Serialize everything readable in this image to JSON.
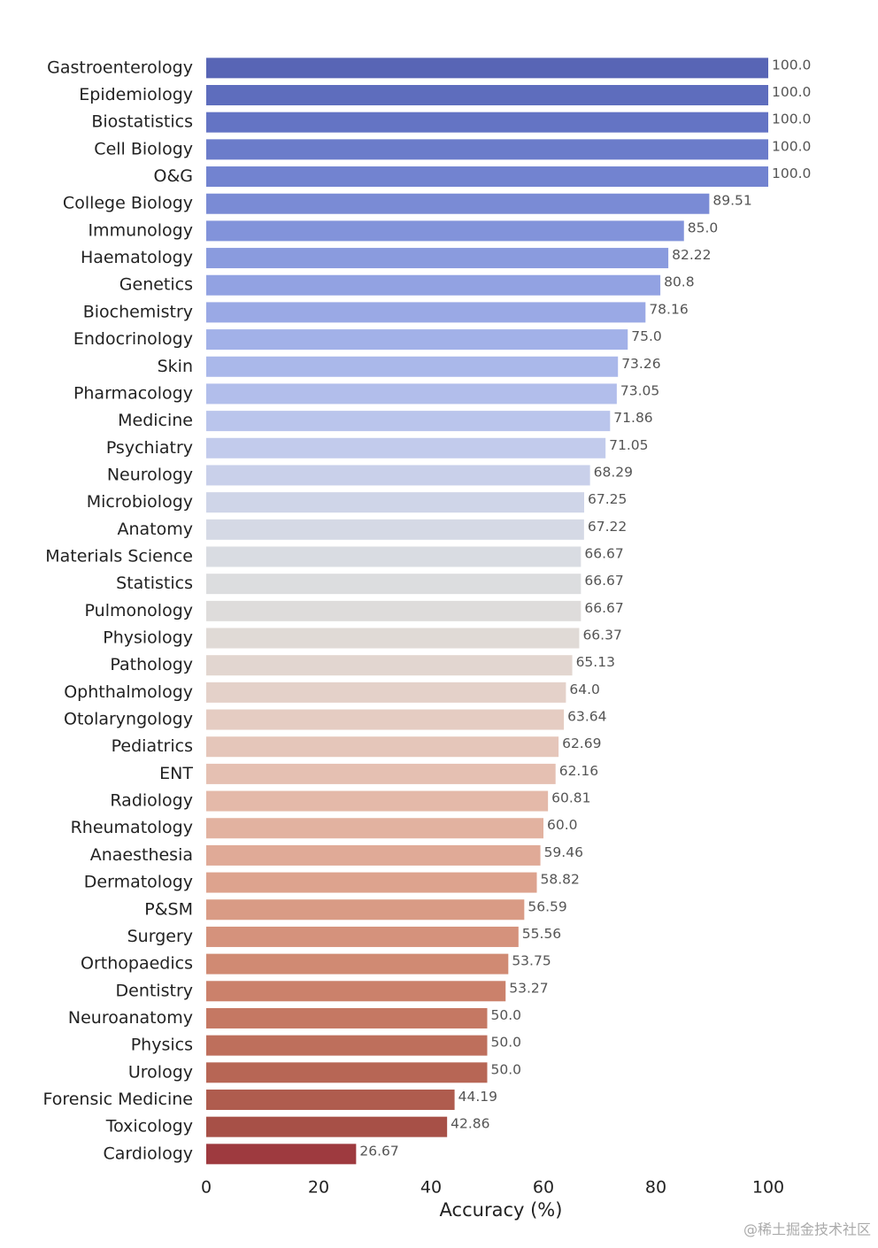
{
  "chart_data": {
    "type": "barh",
    "x_label": "Accuracy (%)",
    "categories": [
      "Gastroenterology",
      "Epidemiology",
      "Biostatistics",
      "Cell Biology",
      "O&G",
      "College Biology",
      "Immunology",
      "Haematology",
      "Genetics",
      "Biochemistry",
      "Endocrinology",
      "Skin",
      "Pharmacology",
      "Medicine",
      "Psychiatry",
      "Neurology",
      "Microbiology",
      "Anatomy",
      "Materials Science",
      "Statistics",
      "Pulmonology",
      "Physiology",
      "Pathology",
      "Ophthalmology",
      "Otolaryngology",
      "Pediatrics",
      "ENT",
      "Radiology",
      "Rheumatology",
      "Anaesthesia",
      "Dermatology",
      "P&SM",
      "Surgery",
      "Orthopaedics",
      "Dentistry",
      "Neuroanatomy",
      "Physics",
      "Urology",
      "Forensic Medicine",
      "Toxicology",
      "Cardiology"
    ],
    "values": [
      100,
      100,
      100,
      100,
      100,
      89.51,
      85,
      82.22,
      80.8,
      78.16,
      75,
      73.26,
      73.05,
      71.86,
      71.05,
      68.29,
      67.25,
      67.22,
      66.67,
      66.67,
      66.67,
      66.37,
      65.13,
      64,
      63.64,
      62.69,
      62.16,
      60.81,
      60,
      59.46,
      58.82,
      56.59,
      55.56,
      53.75,
      53.27,
      50,
      50,
      50,
      44.19,
      42.86,
      26.67
    ],
    "value_labels": [
      "100.0",
      "100.0",
      "100.0",
      "100.0",
      "100.0",
      "89.51",
      "85.0",
      "82.22",
      "80.8",
      "78.16",
      "75.0",
      "73.26",
      "73.05",
      "71.86",
      "71.05",
      "68.29",
      "67.25",
      "67.22",
      "66.67",
      "66.67",
      "66.67",
      "66.37",
      "65.13",
      "64.0",
      "63.64",
      "62.69",
      "62.16",
      "60.81",
      "60.0",
      "59.46",
      "58.82",
      "56.59",
      "55.56",
      "53.75",
      "53.27",
      "50.0",
      "50.0",
      "50.0",
      "44.19",
      "42.86",
      "26.67"
    ],
    "colors": [
      "#5865b5",
      "#5e6dbd",
      "#6474c4",
      "#6b7cca",
      "#7283d0",
      "#7a8bd5",
      "#8293da",
      "#8a9bde",
      "#92a2e2",
      "#9aa9e5",
      "#a2b1e8",
      "#aab8ea",
      "#b2beeb",
      "#bac5ec",
      "#c2cbec",
      "#c9d0ea",
      "#cfd5e8",
      "#d5d9e5",
      "#d9dce2",
      "#dcdddf",
      "#dedcdb",
      "#e0dad6",
      "#e2d6d0",
      "#e4d1c9",
      "#e5ccc2",
      "#e5c6ba",
      "#e5c0b2",
      "#e4b9a9",
      "#e2b2a0",
      "#e0aa97",
      "#dda38e",
      "#d99b85",
      "#d5927c",
      "#d08a73",
      "#cb816b",
      "#c57863",
      "#be6f5c",
      "#b76655",
      "#af5c4e",
      "#a75047",
      "#9e3a3f"
    ],
    "xlim": [
      0,
      100
    ],
    "xticks": [
      0,
      20,
      40,
      60,
      80,
      100
    ],
    "grid": false
  },
  "watermark": "@稀土掘金技术社区"
}
